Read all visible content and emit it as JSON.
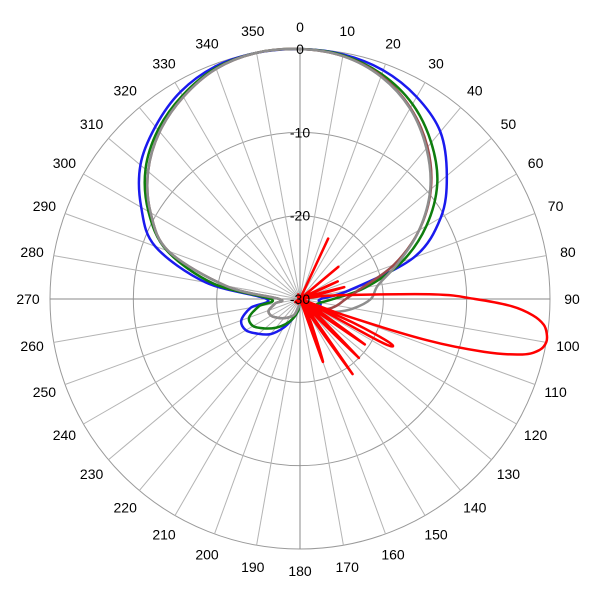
{
  "chart_data": {
    "type": "polar-line",
    "title": "",
    "angle_unit": "degrees",
    "angle_direction": "clockwise",
    "angle_zero": "top",
    "angle_tick_step": 10,
    "angle_tick_labels": [
      "0",
      "10",
      "20",
      "30",
      "40",
      "50",
      "60",
      "70",
      "80",
      "90",
      "100",
      "110",
      "120",
      "130",
      "140",
      "150",
      "160",
      "170",
      "180",
      "190",
      "200",
      "210",
      "220",
      "230",
      "240",
      "250",
      "260",
      "270",
      "280",
      "290",
      "300",
      "310",
      "320",
      "330",
      "340",
      "350"
    ],
    "radial_unit": "dB",
    "radial_range": [
      -30,
      0
    ],
    "radial_ticks": [
      0,
      -10,
      -20,
      -30
    ],
    "radial_tick_labels": [
      "0",
      "-10",
      "-20",
      "-30"
    ],
    "outer_ring_db": 0,
    "grid": true,
    "legend": "none",
    "series": [
      {
        "color": "#1a1aee",
        "angles": [
          0,
          10,
          20,
          30,
          40,
          50,
          60,
          70,
          80,
          90,
          100,
          110,
          120,
          130,
          140,
          150,
          160,
          170,
          180,
          190,
          200,
          210,
          220,
          230,
          240,
          250,
          260,
          270,
          280,
          290,
          300,
          310,
          320,
          330,
          340,
          350
        ],
        "values": [
          0,
          -0.2,
          -0.8,
          -2,
          -3.8,
          -7,
          -10.5,
          -15.5,
          -24,
          -27.5,
          -27.5,
          -27.5,
          -28.5,
          -29.3,
          -29.7,
          -29.8,
          -29.8,
          -29.7,
          -29.5,
          -28.5,
          -27.5,
          -26,
          -24.5,
          -23.5,
          -22.5,
          -22.5,
          -24,
          -26,
          -18.5,
          -11.5,
          -8,
          -5,
          -3,
          -1.3,
          -0.3,
          0
        ]
      },
      {
        "color": "#0e7d0e",
        "angles": [
          0,
          10,
          20,
          30,
          40,
          50,
          60,
          70,
          80,
          90,
          100,
          110,
          120,
          130,
          140,
          150,
          160,
          170,
          180,
          190,
          200,
          210,
          220,
          230,
          240,
          250,
          260,
          270,
          280,
          290,
          300,
          310,
          320,
          330,
          340,
          350
        ],
        "values": [
          0,
          -0.3,
          -1.3,
          -3,
          -5.5,
          -8.5,
          -12.5,
          -17,
          -22,
          -26,
          -27.5,
          -28,
          -28.5,
          -29.3,
          -29.7,
          -29.8,
          -29.8,
          -29.7,
          -29.5,
          -28.5,
          -27.5,
          -26.5,
          -25.5,
          -24.5,
          -23.5,
          -23.5,
          -25,
          -26.5,
          -19.5,
          -13,
          -9,
          -5.8,
          -3.5,
          -1.8,
          -0.5,
          0
        ]
      },
      {
        "color": "#9c4a4a",
        "angles": [
          0,
          10,
          20,
          30,
          40,
          50,
          60,
          70,
          80,
          90,
          100,
          110,
          120,
          130,
          140,
          150,
          160,
          170,
          180,
          190,
          200,
          210,
          220,
          230,
          240,
          250,
          260,
          270,
          280,
          290,
          300,
          310,
          320,
          330,
          340,
          350
        ],
        "values": [
          0,
          -0.4,
          -1.5,
          -3.5,
          -6.2,
          -9.5,
          -13.5,
          -18,
          -22.5,
          -24.5,
          -25.5,
          -26.5,
          -28,
          -29,
          -29.5,
          -29.8,
          -29.8,
          -29.7,
          -29.5,
          -29,
          -28,
          -27.5,
          -27,
          -26.5,
          -26,
          -26,
          -27,
          -27.5,
          -21,
          -13.2,
          -9.3,
          -6.2,
          -3.8,
          -2,
          -0.6,
          0
        ]
      },
      {
        "color": "#8e8e8e",
        "angles": [
          0,
          10,
          20,
          30,
          40,
          50,
          60,
          70,
          80,
          90,
          100,
          110,
          120,
          130,
          140,
          150,
          160,
          170,
          180,
          190,
          200,
          210,
          220,
          230,
          240,
          250,
          260,
          270,
          280,
          290,
          300,
          310,
          320,
          330,
          340,
          350
        ],
        "values": [
          0,
          -0.4,
          -1.6,
          -3.6,
          -6.4,
          -9.6,
          -13.5,
          -17.5,
          -20.5,
          -21.5,
          -23.5,
          -25.5,
          -27.5,
          -28.7,
          -29.4,
          -29.8,
          -29.8,
          -29.7,
          -29.5,
          -29,
          -28,
          -27.5,
          -27,
          -26.5,
          -26,
          -26,
          -27,
          -27.5,
          -21,
          -13.2,
          -9.3,
          -6.2,
          -3.8,
          -2,
          -0.6,
          0
        ]
      },
      {
        "color": "#ff0000",
        "angles": [
          0,
          10,
          20,
          25,
          30,
          35,
          40,
          45,
          50,
          55,
          60,
          65,
          70,
          75,
          80,
          84,
          88,
          90,
          92,
          94,
          96,
          98,
          100,
          102,
          104,
          106,
          108,
          110,
          112,
          114,
          116,
          118,
          120,
          125,
          130,
          135,
          140,
          145,
          150,
          155,
          160,
          170,
          180,
          190,
          200,
          220,
          240,
          260,
          280,
          300,
          320,
          340,
          350
        ],
        "values": [
          -30,
          -30,
          -30,
          -22,
          -30,
          -30,
          -30,
          -30,
          -24,
          -30,
          -30,
          -25,
          -30,
          -24.5,
          -30,
          -26,
          -14,
          -9,
          -4.5,
          -2,
          -0.6,
          -0.1,
          0,
          -0.6,
          -2.5,
          -7,
          -14,
          -24,
          -30,
          -23,
          -18,
          -19,
          -30,
          -20.5,
          -30,
          -20,
          -30,
          -19,
          -30,
          -27,
          -22,
          -30,
          -30,
          -30,
          -30,
          -30,
          -30,
          -30,
          -30,
          -30,
          -30,
          -30,
          -30
        ]
      }
    ]
  }
}
